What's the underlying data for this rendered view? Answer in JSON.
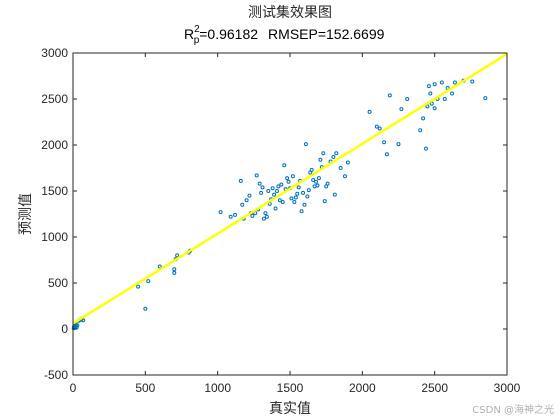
{
  "chart_data": {
    "type": "scatter",
    "title": "测试集效果图",
    "subtitle": {
      "r_symbol": "R",
      "r_sup": "2",
      "r_sub": "p",
      "r_value": "=0.96182",
      "rmsep": "RMSEP=152.6699"
    },
    "xlabel": "真实值",
    "ylabel": "预测值",
    "xlim": [
      0,
      3000
    ],
    "ylim": [
      -500,
      3000
    ],
    "xticks": [
      0,
      500,
      1000,
      1500,
      2000,
      2500,
      3000
    ],
    "yticks": [
      -500,
      0,
      500,
      1000,
      1500,
      2000,
      2500,
      3000
    ],
    "grid": false,
    "colors": {
      "points": "#0072bd",
      "fit_line": "#ffff00",
      "axes": "#262626"
    },
    "fit_line": {
      "x": [
        0,
        3000
      ],
      "y": [
        60,
        2990
      ]
    },
    "points": [
      [
        5,
        10
      ],
      [
        8,
        30
      ],
      [
        12,
        45
      ],
      [
        15,
        20
      ],
      [
        18,
        60
      ],
      [
        20,
        35
      ],
      [
        25,
        15
      ],
      [
        30,
        40
      ],
      [
        40,
        90
      ],
      [
        50,
        100
      ],
      [
        60,
        110
      ],
      [
        70,
        95
      ],
      [
        450,
        460
      ],
      [
        500,
        220
      ],
      [
        520,
        520
      ],
      [
        600,
        680
      ],
      [
        700,
        610
      ],
      [
        700,
        650
      ],
      [
        710,
        760
      ],
      [
        720,
        800
      ],
      [
        800,
        830
      ],
      [
        810,
        850
      ],
      [
        1020,
        1270
      ],
      [
        1090,
        1220
      ],
      [
        1120,
        1240
      ],
      [
        1160,
        1610
      ],
      [
        1170,
        1350
      ],
      [
        1180,
        1200
      ],
      [
        1200,
        1400
      ],
      [
        1220,
        1450
      ],
      [
        1230,
        1260
      ],
      [
        1240,
        1230
      ],
      [
        1260,
        1260
      ],
      [
        1270,
        1670
      ],
      [
        1280,
        1300
      ],
      [
        1290,
        1580
      ],
      [
        1300,
        1480
      ],
      [
        1310,
        1540
      ],
      [
        1320,
        1200
      ],
      [
        1330,
        1260
      ],
      [
        1340,
        1220
      ],
      [
        1350,
        1500
      ],
      [
        1360,
        1360
      ],
      [
        1370,
        1410
      ],
      [
        1380,
        1530
      ],
      [
        1390,
        1460
      ],
      [
        1400,
        1310
      ],
      [
        1410,
        1500
      ],
      [
        1420,
        1550
      ],
      [
        1430,
        1400
      ],
      [
        1440,
        1570
      ],
      [
        1450,
        1380
      ],
      [
        1460,
        1780
      ],
      [
        1470,
        1520
      ],
      [
        1480,
        1640
      ],
      [
        1490,
        1600
      ],
      [
        1500,
        1530
      ],
      [
        1510,
        1420
      ],
      [
        1520,
        1660
      ],
      [
        1530,
        1380
      ],
      [
        1540,
        1430
      ],
      [
        1550,
        1470
      ],
      [
        1560,
        1540
      ],
      [
        1570,
        1610
      ],
      [
        1580,
        1280
      ],
      [
        1590,
        1480
      ],
      [
        1600,
        1350
      ],
      [
        1610,
        2010
      ],
      [
        1620,
        1440
      ],
      [
        1630,
        1510
      ],
      [
        1640,
        1700
      ],
      [
        1650,
        1730
      ],
      [
        1660,
        1620
      ],
      [
        1670,
        1550
      ],
      [
        1680,
        1600
      ],
      [
        1690,
        1560
      ],
      [
        1700,
        1640
      ],
      [
        1710,
        1840
      ],
      [
        1720,
        1760
      ],
      [
        1730,
        1910
      ],
      [
        1740,
        1390
      ],
      [
        1750,
        1550
      ],
      [
        1760,
        1580
      ],
      [
        1780,
        1820
      ],
      [
        1800,
        1870
      ],
      [
        1810,
        1460
      ],
      [
        1820,
        1910
      ],
      [
        1850,
        1750
      ],
      [
        1880,
        1660
      ],
      [
        1900,
        1810
      ],
      [
        2050,
        2360
      ],
      [
        2100,
        2200
      ],
      [
        2120,
        2180
      ],
      [
        2150,
        2030
      ],
      [
        2170,
        1900
      ],
      [
        2190,
        2540
      ],
      [
        2250,
        2010
      ],
      [
        2270,
        2390
      ],
      [
        2310,
        2500
      ],
      [
        2400,
        2160
      ],
      [
        2420,
        2290
      ],
      [
        2440,
        1960
      ],
      [
        2450,
        2420
      ],
      [
        2460,
        2640
      ],
      [
        2470,
        2560
      ],
      [
        2480,
        2450
      ],
      [
        2500,
        2660
      ],
      [
        2500,
        2400
      ],
      [
        2520,
        2500
      ],
      [
        2550,
        2680
      ],
      [
        2570,
        2500
      ],
      [
        2590,
        2620
      ],
      [
        2620,
        2560
      ],
      [
        2640,
        2680
      ],
      [
        2700,
        2700
      ],
      [
        2760,
        2690
      ],
      [
        2850,
        2510
      ]
    ]
  },
  "watermark": "CSDN @海神之光"
}
